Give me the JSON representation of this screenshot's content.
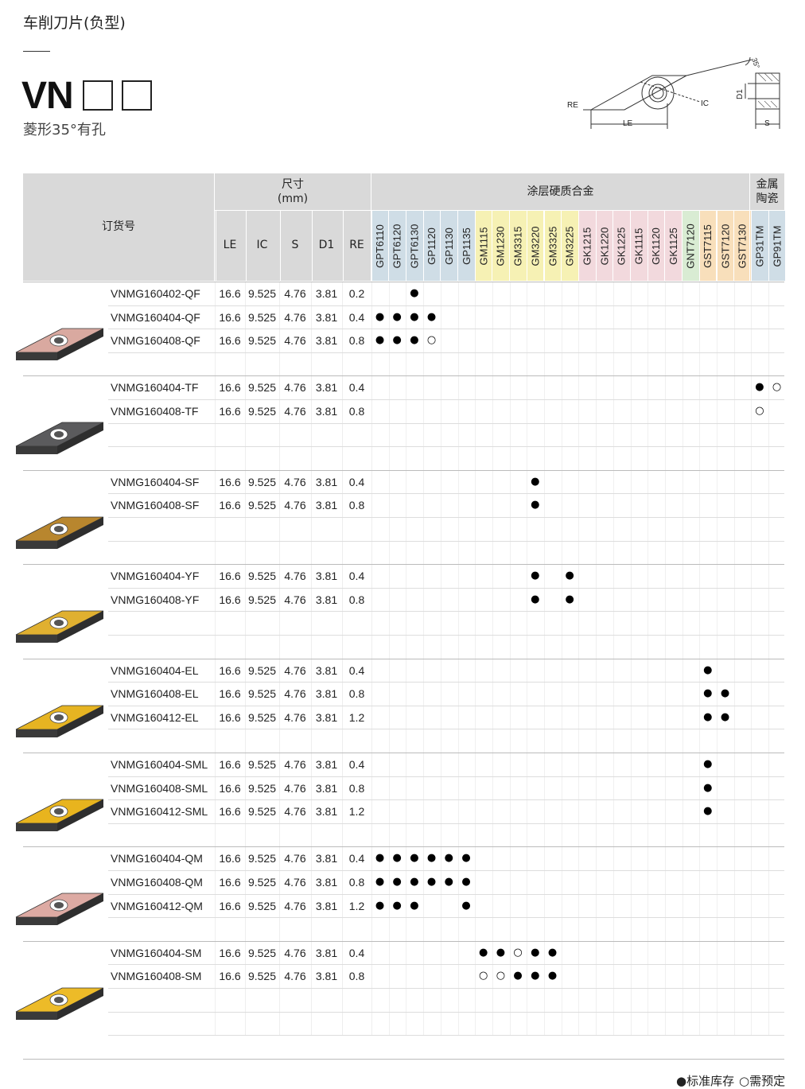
{
  "page": {
    "title": "车削刀片(负型)",
    "model": "VN",
    "subtitle": "菱形35°有孔"
  },
  "diagram_labels": {
    "re": "RE",
    "le": "LE",
    "ic": "IC",
    "d1": "D1",
    "s": "S",
    "angle": "35°"
  },
  "table": {
    "order_header": "订货号",
    "dims_header_line1": "尺寸",
    "dims_header_line2": "(mm)",
    "dim_cols": [
      "LE",
      "IC",
      "S",
      "D1",
      "RE"
    ],
    "coated_header": "涂层硬质合金",
    "cermet_header_line1": "金属",
    "cermet_header_line2": "陶瓷",
    "grades": [
      "GPT6110",
      "GPT6120",
      "GPT6130",
      "GP1120",
      "GP1130",
      "GP1135",
      "GM1115",
      "GM1230",
      "GM3315",
      "GM3220",
      "GM3325",
      "GM3225",
      "GK1215",
      "GK1220",
      "GK1225",
      "GK1115",
      "GK1120",
      "GK1125",
      "GNT7120",
      "GST7115",
      "GST7120",
      "GST7130",
      "GP31TM",
      "GP91TM"
    ],
    "grade_colors": [
      "#cfdde6",
      "#cfdde6",
      "#cfdde6",
      "#cfdde6",
      "#cfdde6",
      "#cfdde6",
      "#f6f1b4",
      "#f6f1b4",
      "#f6f1b4",
      "#f6f1b4",
      "#f6f1b4",
      "#f6f1b4",
      "#f2d9dd",
      "#f2d9dd",
      "#f2d9dd",
      "#f2d9dd",
      "#f2d9dd",
      "#f2d9dd",
      "#d9ecd3",
      "#f8dfbb",
      "#f8dfbb",
      "#f8dfbb",
      "#cfdde6",
      "#cfdde6"
    ],
    "groups": [
      {
        "insert_color": "#d9a9a0",
        "rows": [
          {
            "code": "VNMG160402-QF",
            "le": "16.6",
            "ic": "9.525",
            "s": "4.76",
            "d1": "3.81",
            "re": "0.2",
            "marks": [
              0,
              0,
              1,
              0,
              0,
              0,
              0,
              0,
              0,
              0,
              0,
              0,
              0,
              0,
              0,
              0,
              0,
              0,
              0,
              0,
              0,
              0,
              0,
              0
            ]
          },
          {
            "code": "VNMG160404-QF",
            "le": "16.6",
            "ic": "9.525",
            "s": "4.76",
            "d1": "3.81",
            "re": "0.4",
            "marks": [
              1,
              1,
              1,
              1,
              0,
              0,
              0,
              0,
              0,
              0,
              0,
              0,
              0,
              0,
              0,
              0,
              0,
              0,
              0,
              0,
              0,
              0,
              0,
              0
            ]
          },
          {
            "code": "VNMG160408-QF",
            "le": "16.6",
            "ic": "9.525",
            "s": "4.76",
            "d1": "3.81",
            "re": "0.8",
            "marks": [
              1,
              1,
              1,
              2,
              0,
              0,
              0,
              0,
              0,
              0,
              0,
              0,
              0,
              0,
              0,
              0,
              0,
              0,
              0,
              0,
              0,
              0,
              0,
              0
            ]
          }
        ]
      },
      {
        "insert_color": "#5b5b5d",
        "rows": [
          {
            "code": "VNMG160404-TF",
            "le": "16.6",
            "ic": "9.525",
            "s": "4.76",
            "d1": "3.81",
            "re": "0.4",
            "marks": [
              0,
              0,
              0,
              0,
              0,
              0,
              0,
              0,
              0,
              0,
              0,
              0,
              0,
              0,
              0,
              0,
              0,
              0,
              0,
              0,
              0,
              0,
              1,
              2
            ]
          },
          {
            "code": "VNMG160408-TF",
            "le": "16.6",
            "ic": "9.525",
            "s": "4.76",
            "d1": "3.81",
            "re": "0.8",
            "marks": [
              0,
              0,
              0,
              0,
              0,
              0,
              0,
              0,
              0,
              0,
              0,
              0,
              0,
              0,
              0,
              0,
              0,
              0,
              0,
              0,
              0,
              0,
              2,
              0
            ]
          }
        ]
      },
      {
        "insert_color": "#b8862e",
        "rows": [
          {
            "code": "VNMG160404-SF",
            "le": "16.6",
            "ic": "9.525",
            "s": "4.76",
            "d1": "3.81",
            "re": "0.4",
            "marks": [
              0,
              0,
              0,
              0,
              0,
              0,
              0,
              0,
              0,
              1,
              0,
              0,
              0,
              0,
              0,
              0,
              0,
              0,
              0,
              0,
              0,
              0,
              0,
              0
            ]
          },
          {
            "code": "VNMG160408-SF",
            "le": "16.6",
            "ic": "9.525",
            "s": "4.76",
            "d1": "3.81",
            "re": "0.8",
            "marks": [
              0,
              0,
              0,
              0,
              0,
              0,
              0,
              0,
              0,
              1,
              0,
              0,
              0,
              0,
              0,
              0,
              0,
              0,
              0,
              0,
              0,
              0,
              0,
              0
            ]
          }
        ]
      },
      {
        "insert_color": "#e0b030",
        "rows": [
          {
            "code": "VNMG160404-YF",
            "le": "16.6",
            "ic": "9.525",
            "s": "4.76",
            "d1": "3.81",
            "re": "0.4",
            "marks": [
              0,
              0,
              0,
              0,
              0,
              0,
              0,
              0,
              0,
              1,
              0,
              1,
              0,
              0,
              0,
              0,
              0,
              0,
              0,
              0,
              0,
              0,
              0,
              0
            ]
          },
          {
            "code": "VNMG160408-YF",
            "le": "16.6",
            "ic": "9.525",
            "s": "4.76",
            "d1": "3.81",
            "re": "0.8",
            "marks": [
              0,
              0,
              0,
              0,
              0,
              0,
              0,
              0,
              0,
              1,
              0,
              1,
              0,
              0,
              0,
              0,
              0,
              0,
              0,
              0,
              0,
              0,
              0,
              0
            ]
          }
        ]
      },
      {
        "insert_color": "#e6b422",
        "rows": [
          {
            "code": "VNMG160404-EL",
            "le": "16.6",
            "ic": "9.525",
            "s": "4.76",
            "d1": "3.81",
            "re": "0.4",
            "marks": [
              0,
              0,
              0,
              0,
              0,
              0,
              0,
              0,
              0,
              0,
              0,
              0,
              0,
              0,
              0,
              0,
              0,
              0,
              0,
              1,
              0,
              0,
              0,
              0
            ]
          },
          {
            "code": "VNMG160408-EL",
            "le": "16.6",
            "ic": "9.525",
            "s": "4.76",
            "d1": "3.81",
            "re": "0.8",
            "marks": [
              0,
              0,
              0,
              0,
              0,
              0,
              0,
              0,
              0,
              0,
              0,
              0,
              0,
              0,
              0,
              0,
              0,
              0,
              0,
              1,
              1,
              0,
              0,
              0
            ]
          },
          {
            "code": "VNMG160412-EL",
            "le": "16.6",
            "ic": "9.525",
            "s": "4.76",
            "d1": "3.81",
            "re": "1.2",
            "marks": [
              0,
              0,
              0,
              0,
              0,
              0,
              0,
              0,
              0,
              0,
              0,
              0,
              0,
              0,
              0,
              0,
              0,
              0,
              0,
              1,
              1,
              0,
              0,
              0
            ]
          }
        ]
      },
      {
        "insert_color": "#e8b41e",
        "rows": [
          {
            "code": "VNMG160404-SML",
            "le": "16.6",
            "ic": "9.525",
            "s": "4.76",
            "d1": "3.81",
            "re": "0.4",
            "marks": [
              0,
              0,
              0,
              0,
              0,
              0,
              0,
              0,
              0,
              0,
              0,
              0,
              0,
              0,
              0,
              0,
              0,
              0,
              0,
              1,
              0,
              0,
              0,
              0
            ]
          },
          {
            "code": "VNMG160408-SML",
            "le": "16.6",
            "ic": "9.525",
            "s": "4.76",
            "d1": "3.81",
            "re": "0.8",
            "marks": [
              0,
              0,
              0,
              0,
              0,
              0,
              0,
              0,
              0,
              0,
              0,
              0,
              0,
              0,
              0,
              0,
              0,
              0,
              0,
              1,
              0,
              0,
              0,
              0
            ]
          },
          {
            "code": "VNMG160412-SML",
            "le": "16.6",
            "ic": "9.525",
            "s": "4.76",
            "d1": "3.81",
            "re": "1.2",
            "marks": [
              0,
              0,
              0,
              0,
              0,
              0,
              0,
              0,
              0,
              0,
              0,
              0,
              0,
              0,
              0,
              0,
              0,
              0,
              0,
              1,
              0,
              0,
              0,
              0
            ]
          }
        ]
      },
      {
        "insert_color": "#ddaaa3",
        "rows": [
          {
            "code": "VNMG160404-QM",
            "le": "16.6",
            "ic": "9.525",
            "s": "4.76",
            "d1": "3.81",
            "re": "0.4",
            "marks": [
              1,
              1,
              1,
              1,
              1,
              1,
              0,
              0,
              0,
              0,
              0,
              0,
              0,
              0,
              0,
              0,
              0,
              0,
              0,
              0,
              0,
              0,
              0,
              0
            ]
          },
          {
            "code": "VNMG160408-QM",
            "le": "16.6",
            "ic": "9.525",
            "s": "4.76",
            "d1": "3.81",
            "re": "0.8",
            "marks": [
              1,
              1,
              1,
              1,
              1,
              1,
              0,
              0,
              0,
              0,
              0,
              0,
              0,
              0,
              0,
              0,
              0,
              0,
              0,
              0,
              0,
              0,
              0,
              0
            ]
          },
          {
            "code": "VNMG160412-QM",
            "le": "16.6",
            "ic": "9.525",
            "s": "4.76",
            "d1": "3.81",
            "re": "1.2",
            "marks": [
              1,
              1,
              1,
              0,
              0,
              1,
              0,
              0,
              0,
              0,
              0,
              0,
              0,
              0,
              0,
              0,
              0,
              0,
              0,
              0,
              0,
              0,
              0,
              0
            ]
          }
        ]
      },
      {
        "insert_color": "#edbb28",
        "rows": [
          {
            "code": "VNMG160404-SM",
            "le": "16.6",
            "ic": "9.525",
            "s": "4.76",
            "d1": "3.81",
            "re": "0.4",
            "marks": [
              0,
              0,
              0,
              0,
              0,
              0,
              1,
              1,
              2,
              1,
              1,
              0,
              0,
              0,
              0,
              0,
              0,
              0,
              0,
              0,
              0,
              0,
              0,
              0
            ]
          },
          {
            "code": "VNMG160408-SM",
            "le": "16.6",
            "ic": "9.525",
            "s": "4.76",
            "d1": "3.81",
            "re": "0.8",
            "marks": [
              0,
              0,
              0,
              0,
              0,
              0,
              2,
              2,
              1,
              1,
              1,
              0,
              0,
              0,
              0,
              0,
              0,
              0,
              0,
              0,
              0,
              0,
              0,
              0
            ]
          }
        ]
      }
    ]
  },
  "legend": {
    "stock_symbol": "●",
    "stock_label": "标准库存",
    "order_symbol": "○",
    "order_label": "需预定"
  }
}
